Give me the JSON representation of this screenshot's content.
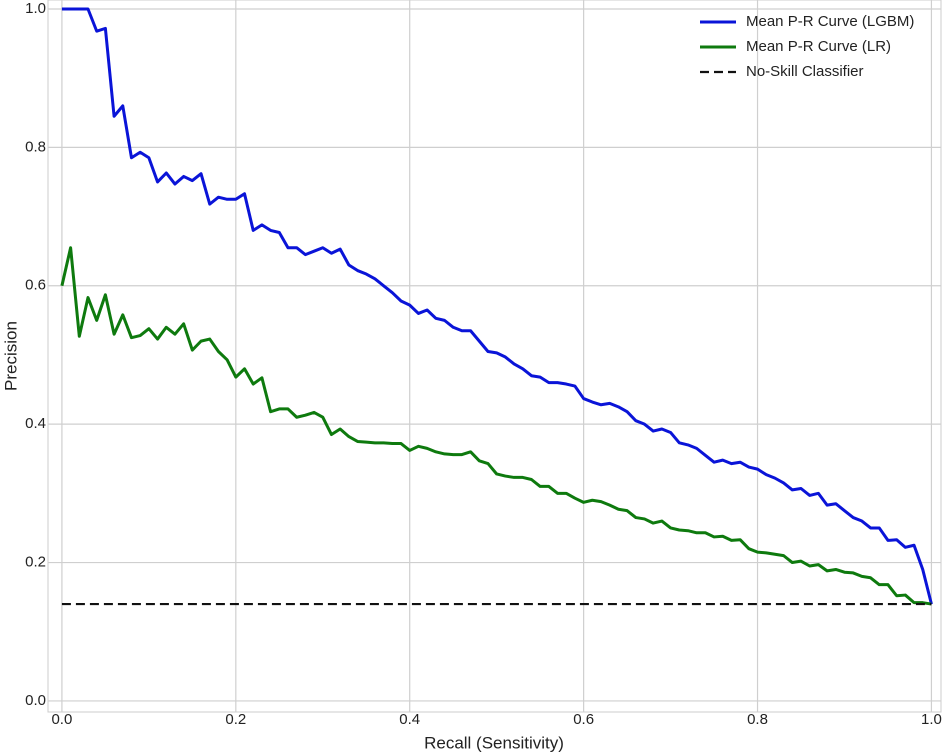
{
  "chart_data": {
    "type": "line",
    "x_label": "Recall (Sensitivity)",
    "y_label": "Precision",
    "x": [
      0,
      0.01,
      0.02,
      0.03,
      0.04,
      0.05,
      0.06,
      0.07,
      0.08,
      0.09,
      0.1,
      0.11,
      0.12,
      0.13,
      0.14,
      0.15,
      0.16,
      0.17,
      0.18,
      0.19,
      0.2,
      0.21,
      0.22,
      0.23,
      0.24,
      0.25,
      0.26,
      0.27,
      0.28,
      0.29,
      0.3,
      0.31,
      0.32,
      0.33,
      0.34,
      0.35,
      0.36,
      0.37,
      0.38,
      0.39,
      0.4,
      0.41,
      0.42,
      0.43,
      0.44,
      0.45,
      0.46,
      0.47,
      0.48,
      0.49,
      0.5,
      0.51,
      0.52,
      0.53,
      0.54,
      0.55,
      0.56,
      0.57,
      0.58,
      0.59,
      0.6,
      0.61,
      0.62,
      0.63,
      0.64,
      0.65,
      0.66,
      0.67,
      0.68,
      0.69,
      0.7,
      0.71,
      0.72,
      0.73,
      0.74,
      0.75,
      0.76,
      0.77,
      0.78,
      0.79,
      0.8,
      0.81,
      0.82,
      0.83,
      0.84,
      0.85,
      0.86,
      0.87,
      0.88,
      0.89,
      0.9,
      0.91,
      0.92,
      0.93,
      0.94,
      0.95,
      0.96,
      0.97,
      0.98,
      0.99,
      1
    ],
    "series": [
      {
        "name": "Mean P-R Curve (LGBM)",
        "color": "#0a14d8",
        "linestyle": "solid",
        "values": [
          1.0,
          1.0,
          1.0,
          1.0,
          0.968,
          0.972,
          0.845,
          0.86,
          0.785,
          0.793,
          0.785,
          0.75,
          0.763,
          0.747,
          0.758,
          0.752,
          0.762,
          0.718,
          0.728,
          0.725,
          0.725,
          0.733,
          0.68,
          0.688,
          0.68,
          0.677,
          0.655,
          0.655,
          0.645,
          0.65,
          0.655,
          0.647,
          0.653,
          0.63,
          0.622,
          0.617,
          0.61,
          0.6,
          0.59,
          0.578,
          0.572,
          0.56,
          0.565,
          0.553,
          0.55,
          0.54,
          0.535,
          0.535,
          0.52,
          0.505,
          0.503,
          0.497,
          0.487,
          0.48,
          0.47,
          0.468,
          0.46,
          0.46,
          0.458,
          0.455,
          0.437,
          0.432,
          0.428,
          0.43,
          0.425,
          0.418,
          0.405,
          0.4,
          0.39,
          0.393,
          0.388,
          0.373,
          0.37,
          0.365,
          0.355,
          0.345,
          0.348,
          0.343,
          0.345,
          0.338,
          0.335,
          0.327,
          0.322,
          0.315,
          0.305,
          0.307,
          0.297,
          0.3,
          0.283,
          0.285,
          0.275,
          0.265,
          0.26,
          0.25,
          0.25,
          0.232,
          0.233,
          0.222,
          0.225,
          0.19,
          0.14
        ]
      },
      {
        "name": "Mean P-R Curve (LR)",
        "color": "#0e7a0e",
        "linestyle": "solid",
        "values": [
          0.6,
          0.655,
          0.527,
          0.583,
          0.55,
          0.587,
          0.53,
          0.558,
          0.525,
          0.528,
          0.538,
          0.523,
          0.54,
          0.53,
          0.545,
          0.507,
          0.52,
          0.523,
          0.505,
          0.493,
          0.468,
          0.48,
          0.458,
          0.467,
          0.418,
          0.422,
          0.422,
          0.41,
          0.413,
          0.417,
          0.41,
          0.385,
          0.393,
          0.382,
          0.375,
          0.374,
          0.373,
          0.373,
          0.372,
          0.372,
          0.362,
          0.368,
          0.365,
          0.36,
          0.357,
          0.356,
          0.356,
          0.36,
          0.347,
          0.343,
          0.328,
          0.325,
          0.323,
          0.323,
          0.32,
          0.31,
          0.31,
          0.3,
          0.3,
          0.293,
          0.287,
          0.29,
          0.288,
          0.283,
          0.277,
          0.275,
          0.265,
          0.263,
          0.257,
          0.26,
          0.25,
          0.247,
          0.246,
          0.243,
          0.243,
          0.237,
          0.238,
          0.232,
          0.233,
          0.22,
          0.215,
          0.214,
          0.212,
          0.21,
          0.2,
          0.202,
          0.195,
          0.197,
          0.188,
          0.19,
          0.186,
          0.185,
          0.18,
          0.178,
          0.168,
          0.168,
          0.152,
          0.153,
          0.142,
          0.142,
          0.14
        ]
      },
      {
        "name": "No-Skill Classifier",
        "color": "#111111",
        "linestyle": "dashed",
        "x": [
          0,
          1
        ],
        "values": [
          0.14,
          0.14
        ]
      }
    ],
    "xlim": [
      -0.016,
      1.011
    ],
    "ylim": [
      -0.016,
      1.013
    ],
    "xticks": [
      {
        "value": 0,
        "label": "0.0"
      },
      {
        "value": 0.2,
        "label": "0.2"
      },
      {
        "value": 0.4,
        "label": "0.4"
      },
      {
        "value": 0.6,
        "label": "0.6"
      },
      {
        "value": 0.8,
        "label": "0.8"
      },
      {
        "value": 1,
        "label": "1.0"
      }
    ],
    "yticks": [
      {
        "value": 0,
        "label": "0.0"
      },
      {
        "value": 0.2,
        "label": "0.2"
      },
      {
        "value": 0.4,
        "label": "0.4"
      },
      {
        "value": 0.6,
        "label": "0.6"
      },
      {
        "value": 0.8,
        "label": "0.8"
      },
      {
        "value": 1,
        "label": "1.0"
      }
    ],
    "grid": true,
    "legend": "upper right"
  }
}
